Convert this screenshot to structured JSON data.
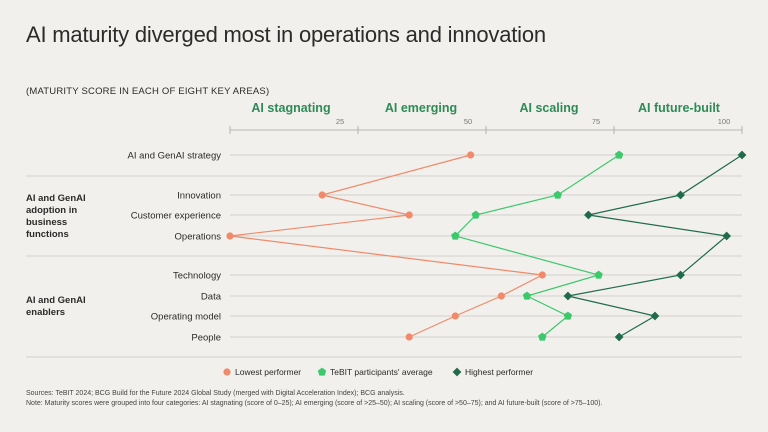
{
  "title": "AI maturity diverged most in operations and innovation",
  "subtitle": "(MATURITY SCORE IN EACH OF EIGHT KEY AREAS)",
  "colors": {
    "lowest": "#f08a6a",
    "average": "#3cc96b",
    "highest": "#1f6b4c",
    "category": "#2e8b57",
    "grid": "#c9c6c0",
    "axis": "#a9a6a0"
  },
  "chart_data": {
    "type": "line",
    "title": "AI maturity diverged most in operations and innovation",
    "xlim": [
      0,
      100
    ],
    "xticks": [
      25,
      50,
      75,
      100
    ],
    "categories_bands": [
      "AI stagnating",
      "AI emerging",
      "AI scaling",
      "AI future-built"
    ],
    "rows": [
      "AI and GenAI strategy",
      "Innovation",
      "Customer experience",
      "Operations",
      "Technology",
      "Data",
      "Operating model",
      "People"
    ],
    "groups": [
      {
        "label": "AI and GenAI adoption in business functions",
        "rows": [
          "Innovation",
          "Customer experience",
          "Operations"
        ]
      },
      {
        "label": "AI and GenAI enablers",
        "rows": [
          "Technology",
          "Data",
          "Operating model",
          "People"
        ]
      }
    ],
    "series": [
      {
        "name": "Lowest performer",
        "marker": "circle",
        "values": [
          47,
          18,
          35,
          0,
          61,
          53,
          44,
          35
        ]
      },
      {
        "name": "TeBIT participants' average",
        "marker": "pentagon",
        "values": [
          76,
          64,
          48,
          44,
          72,
          58,
          66,
          61
        ]
      },
      {
        "name": "Highest performer",
        "marker": "diamond",
        "values": [
          100,
          88,
          70,
          97,
          88,
          66,
          83,
          76
        ]
      }
    ]
  },
  "footer": {
    "sources": "Sources: TeBIT 2024; BCG Build for the Future 2024 Global Study (merged with Digital Acceleration Index); BCG analysis.",
    "note": "Note: Maturity scores were grouped into four categories: AI stagnating (score of 0–25); AI emerging (score of >25–50); AI scaling (score of >50–75); and AI future-built (score of >75–100)."
  }
}
